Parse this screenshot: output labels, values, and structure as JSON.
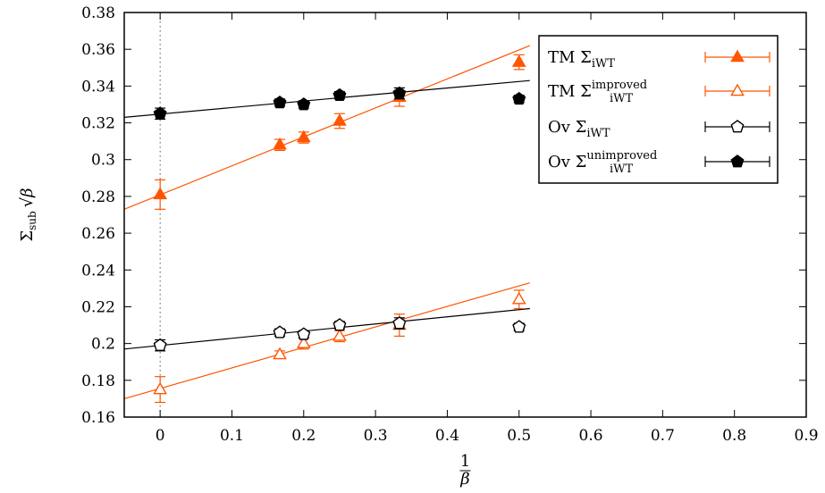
{
  "chart_data": {
    "type": "scatter",
    "xlabel_num": "1",
    "xlabel_den": "β",
    "ylabel_main": "Σ",
    "ylabel_sub": "sub",
    "ylabel_sqrt": "√β",
    "xlim": [
      -0.05,
      0.9
    ],
    "ylim": [
      0.16,
      0.38
    ],
    "x_ticks": [
      0,
      0.1,
      0.2,
      0.3,
      0.4,
      0.5,
      0.6,
      0.7,
      0.8,
      0.9
    ],
    "x_tick_labels": [
      "0",
      "0.1",
      "0.2",
      "0.3",
      "0.4",
      "0.5",
      "0.6",
      "0.7",
      "0.8",
      "0.9"
    ],
    "y_ticks": [
      0.16,
      0.18,
      0.2,
      0.22,
      0.24,
      0.26,
      0.28,
      0.3,
      0.32,
      0.34,
      0.36,
      0.38
    ],
    "y_tick_labels": [
      "0.16",
      "0.18",
      "0.2",
      "0.22",
      "0.24",
      "0.26",
      "0.28",
      "0.3",
      "0.32",
      "0.34",
      "0.36",
      "0.38"
    ],
    "vertical_reference_x": 0,
    "legend_position": "top-right",
    "series": [
      {
        "name": "TM",
        "sigma": "Σ",
        "sub": "iWT",
        "sup": "",
        "marker": "triangle-filled",
        "color": "#ff5500",
        "points": [
          {
            "x": 0,
            "y": 0.281,
            "err": 0.008
          },
          {
            "x": 0.1667,
            "y": 0.308,
            "err": 0.003
          },
          {
            "x": 0.2,
            "y": 0.312,
            "err": 0.003
          },
          {
            "x": 0.25,
            "y": 0.321,
            "err": 0.004
          },
          {
            "x": 0.3333,
            "y": 0.334,
            "err": 0.005
          },
          {
            "x": 0.5,
            "y": 0.353,
            "err": 0.004
          }
        ],
        "fit": {
          "x": [
            -0.05,
            0.515
          ],
          "y": [
            0.273,
            0.362
          ]
        }
      },
      {
        "name": "TM",
        "sigma": "Σ",
        "sub": "iWT",
        "sup": "improved",
        "marker": "triangle-open",
        "color": "#ff5500",
        "points": [
          {
            "x": 0,
            "y": 0.175,
            "err": 0.007
          },
          {
            "x": 0.1667,
            "y": 0.194,
            "err": 0.002
          },
          {
            "x": 0.2,
            "y": 0.2,
            "err": 0.003
          },
          {
            "x": 0.25,
            "y": 0.204,
            "err": 0.003
          },
          {
            "x": 0.3333,
            "y": 0.21,
            "err": 0.006
          },
          {
            "x": 0.5,
            "y": 0.224,
            "err": 0.005
          }
        ],
        "fit": {
          "x": [
            -0.05,
            0.515
          ],
          "y": [
            0.17,
            0.233
          ]
        }
      },
      {
        "name": "Ov",
        "sigma": "Σ",
        "sub": "iWT",
        "sup": "",
        "marker": "pentagon-open",
        "color": "#000000",
        "points": [
          {
            "x": 0,
            "y": 0.199,
            "err": 0.003
          },
          {
            "x": 0.1667,
            "y": 0.206,
            "err": 0.002
          },
          {
            "x": 0.2,
            "y": 0.205,
            "err": 0.002
          },
          {
            "x": 0.25,
            "y": 0.21,
            "err": 0.002
          },
          {
            "x": 0.3333,
            "y": 0.211,
            "err": 0.003
          },
          {
            "x": 0.5,
            "y": 0.209,
            "err": 0.002
          }
        ],
        "fit": {
          "x": [
            -0.05,
            0.515
          ],
          "y": [
            0.197,
            0.219
          ]
        }
      },
      {
        "name": "Ov",
        "sigma": "Σ",
        "sub": "iWT",
        "sup": "unimproved",
        "marker": "pentagon-filled",
        "color": "#000000",
        "points": [
          {
            "x": 0,
            "y": 0.325,
            "err": 0.003
          },
          {
            "x": 0.1667,
            "y": 0.331,
            "err": 0.002
          },
          {
            "x": 0.2,
            "y": 0.33,
            "err": 0.002
          },
          {
            "x": 0.25,
            "y": 0.335,
            "err": 0.002
          },
          {
            "x": 0.3333,
            "y": 0.336,
            "err": 0.003
          },
          {
            "x": 0.5,
            "y": 0.333,
            "err": 0.002
          }
        ],
        "fit": {
          "x": [
            -0.05,
            0.515
          ],
          "y": [
            0.323,
            0.343
          ]
        }
      }
    ]
  }
}
